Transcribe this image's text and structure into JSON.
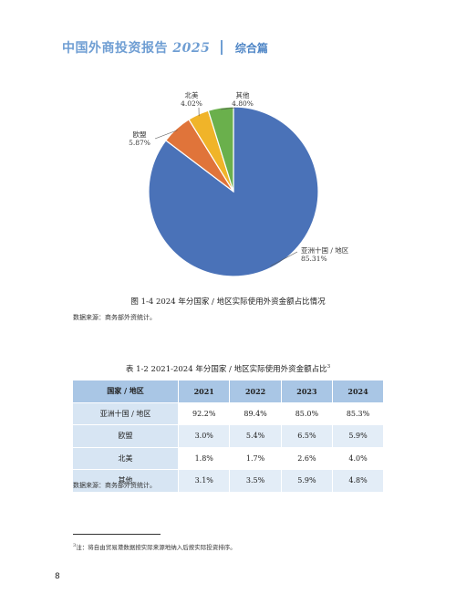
{
  "header": {
    "title": "中国外商投资报告",
    "year": "2025",
    "section": "综合篇"
  },
  "figure": {
    "caption": "图 1-4 2024 年分国家 / 地区实际使用外资金额占比情况",
    "source": "数据来源：商务部外资统计。"
  },
  "chart_data": {
    "type": "pie",
    "slices": [
      {
        "name": "亚洲十国 / 地区",
        "value": 85.31,
        "label": "85.31%",
        "color": "#4a72b8"
      },
      {
        "name": "欧盟",
        "value": 5.87,
        "label": "5.87%",
        "color": "#e0743a"
      },
      {
        "name": "北美",
        "value": 4.02,
        "label": "4.02%",
        "color": "#f0b429"
      },
      {
        "name": "其他",
        "value": 4.8,
        "label": "4.80%",
        "color": "#6ab04c"
      }
    ]
  },
  "table": {
    "caption": "表 1-2 2021-2024 年分国家 / 地区实际使用外资金额占比",
    "caption_note": "3",
    "headers": [
      "国家 / 地区",
      "2021",
      "2022",
      "2023",
      "2024"
    ],
    "rows": [
      [
        "亚洲十国 / 地区",
        "92.2%",
        "89.4%",
        "85.0%",
        "85.3%"
      ],
      [
        "欧盟",
        "3.0%",
        "5.4%",
        "6.5%",
        "5.9%"
      ],
      [
        "北美",
        "1.8%",
        "1.7%",
        "2.6%",
        "4.0%"
      ],
      [
        "其他",
        "3.1%",
        "3.5%",
        "5.9%",
        "4.8%"
      ]
    ],
    "source": "数据来源：商务部外资统计。"
  },
  "footnote": {
    "mark": "3",
    "text": "注：将自由贸易港数据按实际来源地纳入后按实际投资排序。"
  },
  "page_number": "8"
}
